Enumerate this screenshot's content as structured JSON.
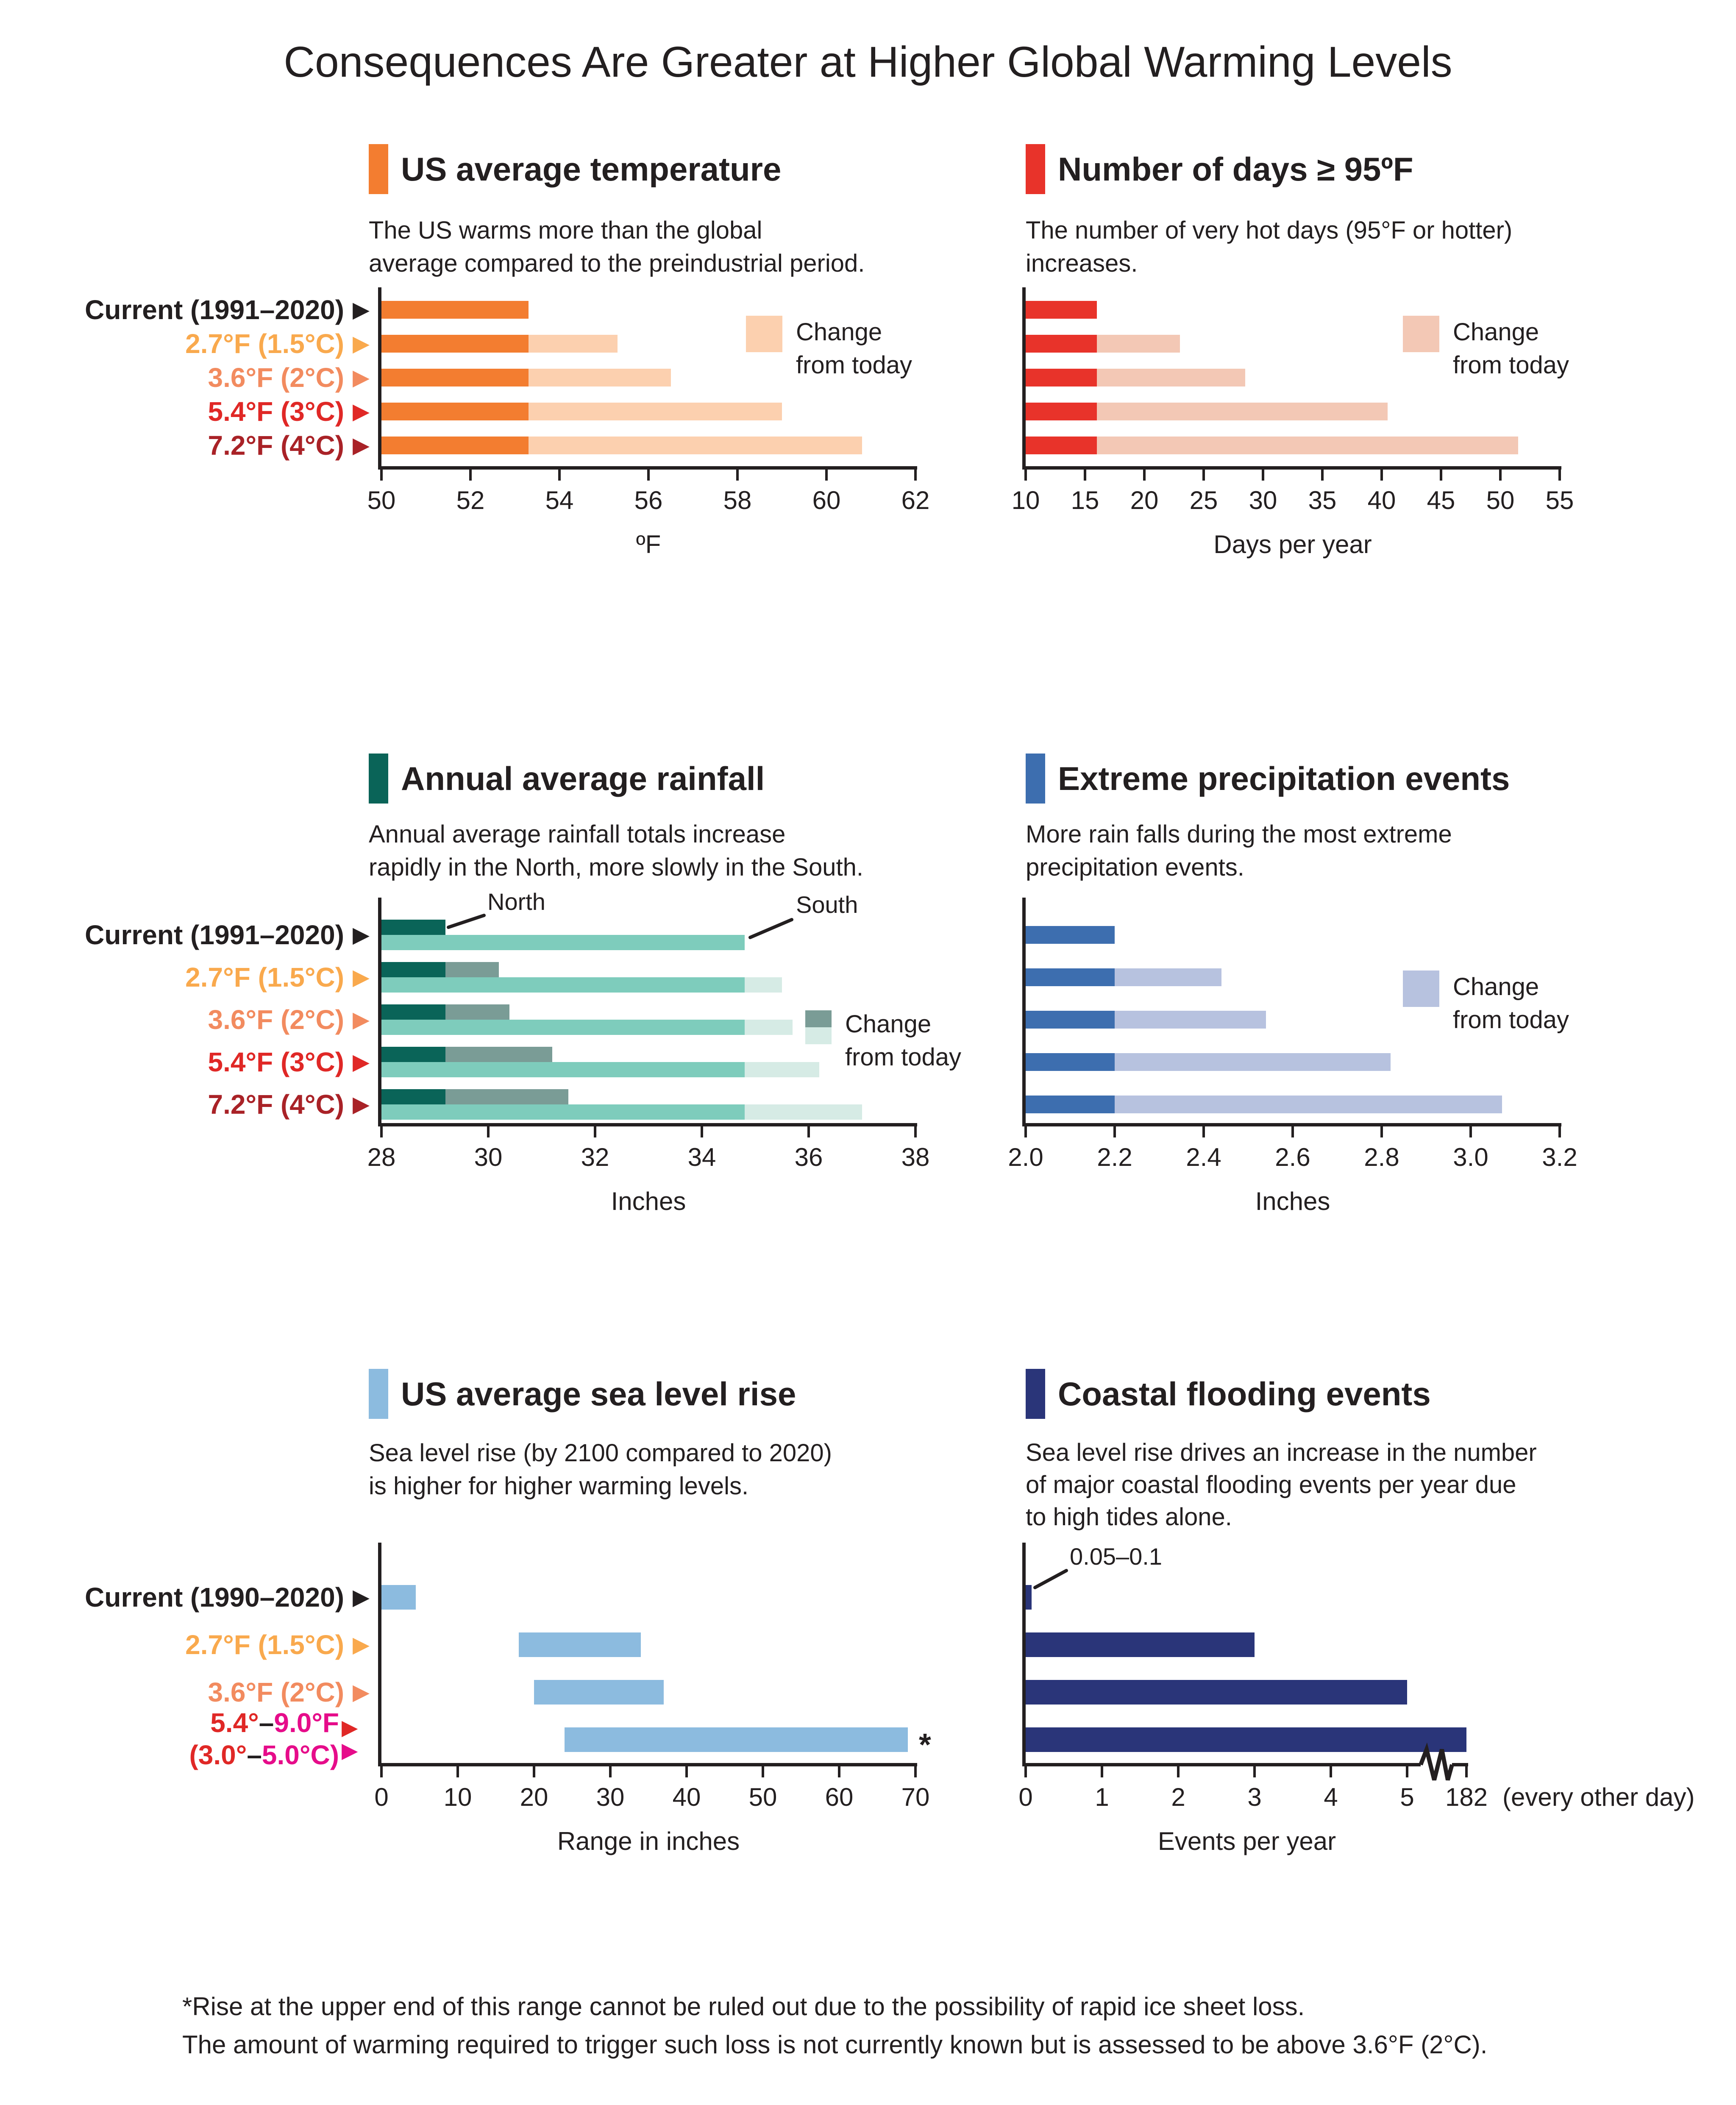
{
  "page_title": "Consequences Are Greater at Higher Global Warming Levels",
  "colors": {
    "axis": "#231F20",
    "text": "#231F20",
    "label_current": "#231F20",
    "label_1_5c": "#F9A94D",
    "label_2c": "#F28B5F",
    "label_3c": "#E02826",
    "label_4c": "#A92227",
    "label_magenta": "#E60C8A"
  },
  "panels": [
    {
      "id": "temperature",
      "title": "US average temperature",
      "accent": "#F37D30",
      "subtitle_lines": [
        "The US warms more than the global",
        "average compared to the preindustrial period."
      ],
      "legend_lines": [
        "Change",
        "from today"
      ]
    },
    {
      "id": "hot-days",
      "title": "Number of days ≥ 95ºF",
      "accent": "#E8332A",
      "subtitle_lines": [
        "The number of very hot days (95°F or hotter)",
        "increases."
      ],
      "legend_lines": [
        "Change",
        "from today"
      ]
    },
    {
      "id": "rainfall",
      "title": "Annual average rainfall",
      "accent": "#0A6458",
      "subtitle_lines": [
        "Annual average rainfall totals increase",
        "rapidly in the North, more slowly in the South."
      ],
      "legend_lines": [
        "Change",
        "from today"
      ]
    },
    {
      "id": "extreme-precipitation",
      "title": "Extreme precipitation events",
      "accent": "#3D6EAF",
      "subtitle_lines": [
        "More rain falls during the most extreme",
        "precipitation events."
      ],
      "legend_lines": [
        "Change",
        "from today"
      ]
    },
    {
      "id": "sea-level",
      "title": "US average sea level rise",
      "accent": "#8CBBDF",
      "subtitle_lines": [
        "Sea level rise (by 2100 compared to 2020)",
        "is higher for higher warming levels."
      ]
    },
    {
      "id": "coastal-flooding",
      "title": "Coastal flooding events",
      "accent": "#2A3579",
      "subtitle_lines": [
        "Sea level rise drives an increase in the number",
        "of major coastal flooding events per year due",
        "to high tides alone."
      ]
    }
  ],
  "row_labels": {
    "rows_1_2": [
      {
        "text": "Current (1991–2020)",
        "color": "#231F20"
      },
      {
        "text": "2.7°F (1.5°C)",
        "color": "#F9A94D"
      },
      {
        "text": "3.6°F (2°C)",
        "color": "#F28B5F"
      },
      {
        "text": "5.4°F (3°C)",
        "color": "#E02826"
      },
      {
        "text": "7.2°F (4°C)",
        "color": "#A92227"
      }
    ],
    "row_3": [
      {
        "text": "Current (1990–2020)",
        "color": "#231F20"
      },
      {
        "text": "2.7°F (1.5°C)",
        "color": "#F9A94D"
      },
      {
        "text": "3.6°F (2°C)",
        "color": "#F28B5F"
      },
      {
        "parts": [
          [
            {
              "text": "5.4°",
              "color": "#E02826"
            },
            {
              "text": "–",
              "color": "#231F20"
            },
            {
              "text": "9.0°F",
              "color": "#E60C8A"
            }
          ],
          [
            {
              "text": "(3.0°",
              "color": "#E02826"
            },
            {
              "text": "–",
              "color": "#231F20"
            },
            {
              "text": "5.0°C)",
              "color": "#E60C8A"
            }
          ]
        ],
        "arrow_colors": [
          "#E02826",
          "#E60C8A"
        ]
      }
    ]
  },
  "chart_data": [
    {
      "id": "us-average-temperature",
      "type": "stacked_bar",
      "title": "US average temperature",
      "xlabel": "ºF",
      "xlim": [
        50,
        62
      ],
      "ticks": [
        "50",
        "52",
        "54",
        "56",
        "58",
        "60",
        "62"
      ],
      "categories": [
        "Current (1991–2020)",
        "2.7°F (1.5°C)",
        "3.6°F (2°C)",
        "5.4°F (3°C)",
        "7.2°F (4°C)"
      ],
      "series": [
        {
          "name": "Today",
          "values": [
            53.3,
            53.3,
            53.3,
            53.3,
            53.3
          ]
        },
        {
          "name": "Change from today",
          "values": [
            0,
            2.0,
            3.2,
            5.7,
            7.5
          ]
        }
      ],
      "totals": [
        53.3,
        55.3,
        56.5,
        59.0,
        60.8
      ],
      "colors": {
        "base": "#F37D30",
        "change": "#FCD0AF"
      },
      "legend": "Change from today"
    },
    {
      "id": "days-at-or-above-95f",
      "type": "stacked_bar",
      "title": "Number of days ≥ 95ºF",
      "xlabel": "Days per year",
      "xlim": [
        10,
        55
      ],
      "ticks": [
        "10",
        "15",
        "20",
        "25",
        "30",
        "35",
        "40",
        "45",
        "50",
        "55"
      ],
      "categories": [
        "Current (1991–2020)",
        "2.7°F (1.5°C)",
        "3.6°F (2°C)",
        "5.4°F (3°C)",
        "7.2°F (4°C)"
      ],
      "series": [
        {
          "name": "Today",
          "values": [
            16,
            16,
            16,
            16,
            16
          ]
        },
        {
          "name": "Change from today",
          "values": [
            0,
            7,
            12.5,
            24.5,
            35.5
          ]
        }
      ],
      "totals": [
        16,
        23,
        28.5,
        40.5,
        51.5
      ],
      "colors": {
        "base": "#E8332A",
        "change": "#F3C8B5"
      },
      "legend": "Change from today"
    },
    {
      "id": "annual-average-rainfall",
      "type": "paired_stacked_bar",
      "title": "Annual average rainfall",
      "xlabel": "Inches",
      "xlim": [
        28,
        38
      ],
      "ticks": [
        "28",
        "30",
        "32",
        "34",
        "36",
        "38"
      ],
      "categories": [
        "Current (1991–2020)",
        "2.7°F (1.5°C)",
        "3.6°F (2°C)",
        "5.4°F (3°C)",
        "7.2°F (4°C)"
      ],
      "series": [
        {
          "name": "North today",
          "values": [
            29.2,
            29.2,
            29.2,
            29.2,
            29.2
          ]
        },
        {
          "name": "North change from today",
          "values": [
            0,
            1.0,
            1.2,
            2.0,
            2.3
          ]
        },
        {
          "name": "South today",
          "values": [
            34.8,
            34.8,
            34.8,
            34.8,
            34.8
          ]
        },
        {
          "name": "South change from today",
          "values": [
            0,
            0.7,
            0.9,
            1.4,
            2.2
          ]
        }
      ],
      "north_totals": [
        29.2,
        30.2,
        30.4,
        31.2,
        31.5
      ],
      "south_totals": [
        34.8,
        35.5,
        35.7,
        36.2,
        37.0
      ],
      "colors": {
        "north": "#0A6458",
        "north_change": "#7A9C96",
        "south": "#7ECCBC",
        "south_change": "#D6EBE5"
      },
      "legend": "Change from today",
      "annotations": [
        "North",
        "South"
      ]
    },
    {
      "id": "extreme-precipitation-events",
      "type": "stacked_bar",
      "title": "Extreme precipitation events",
      "xlabel": "Inches",
      "xlim": [
        2.0,
        3.2
      ],
      "ticks": [
        "2.0",
        "2.2",
        "2.4",
        "2.6",
        "2.8",
        "3.0",
        "3.2"
      ],
      "categories": [
        "Current (1991–2020)",
        "2.7°F (1.5°C)",
        "3.6°F (2°C)",
        "5.4°F (3°C)",
        "7.2°F (4°C)"
      ],
      "series": [
        {
          "name": "Today",
          "values": [
            2.2,
            2.2,
            2.2,
            2.2,
            2.2
          ]
        },
        {
          "name": "Change from today",
          "values": [
            0,
            0.24,
            0.34,
            0.62,
            0.87
          ]
        }
      ],
      "totals": [
        2.2,
        2.44,
        2.54,
        2.82,
        3.07
      ],
      "colors": {
        "base": "#3D6EAF",
        "change": "#B7C2DF"
      },
      "legend": "Change from today"
    },
    {
      "id": "us-average-sea-level-rise",
      "type": "range_bar",
      "title": "US average sea level rise",
      "xlabel": "Range in inches",
      "xlim": [
        0,
        70
      ],
      "ticks": [
        "0",
        "10",
        "20",
        "30",
        "40",
        "50",
        "60",
        "70"
      ],
      "categories": [
        "Current (1990–2020)",
        "2.7°F (1.5°C)",
        "3.6°F (2°C)",
        "5.4°–9.0°F (3.0°–5.0°C)"
      ],
      "ranges": [
        [
          0,
          4.5
        ],
        [
          18,
          34
        ],
        [
          20,
          37
        ],
        [
          24,
          69
        ]
      ],
      "range_note": {
        "index": 3,
        "symbol": "*"
      },
      "colors": {
        "bar": "#8CBBDF"
      }
    },
    {
      "id": "coastal-flooding-events",
      "type": "bar_with_axis_break",
      "title": "Coastal flooding events",
      "xlabel": "Events per year",
      "xlim": [
        0,
        5
      ],
      "ticks": [
        "0",
        "1",
        "2",
        "3",
        "4",
        "5"
      ],
      "break_tick_label": "182",
      "break_tick_suffix": "(every other day)",
      "categories": [
        "Current (1990–2020)",
        "2.7°F (1.5°C)",
        "3.6°F (2°C)",
        "5.4°–9.0°F (3.0°–5.0°C)"
      ],
      "values": [
        0.075,
        3,
        5,
        182
      ],
      "value_labels": [
        "0.05–0.1",
        "3",
        "5",
        "182"
      ],
      "annotation": {
        "index": 0,
        "text": "0.05–0.1"
      },
      "colors": {
        "bar": "#2A3579"
      }
    }
  ],
  "footnote": [
    "*Rise at the upper end of this range cannot be ruled out due to the possibility of rapid ice sheet loss.",
    "The amount of warming required to trigger such loss is not currently known but is assessed to be above 3.6°F (2°C)."
  ]
}
